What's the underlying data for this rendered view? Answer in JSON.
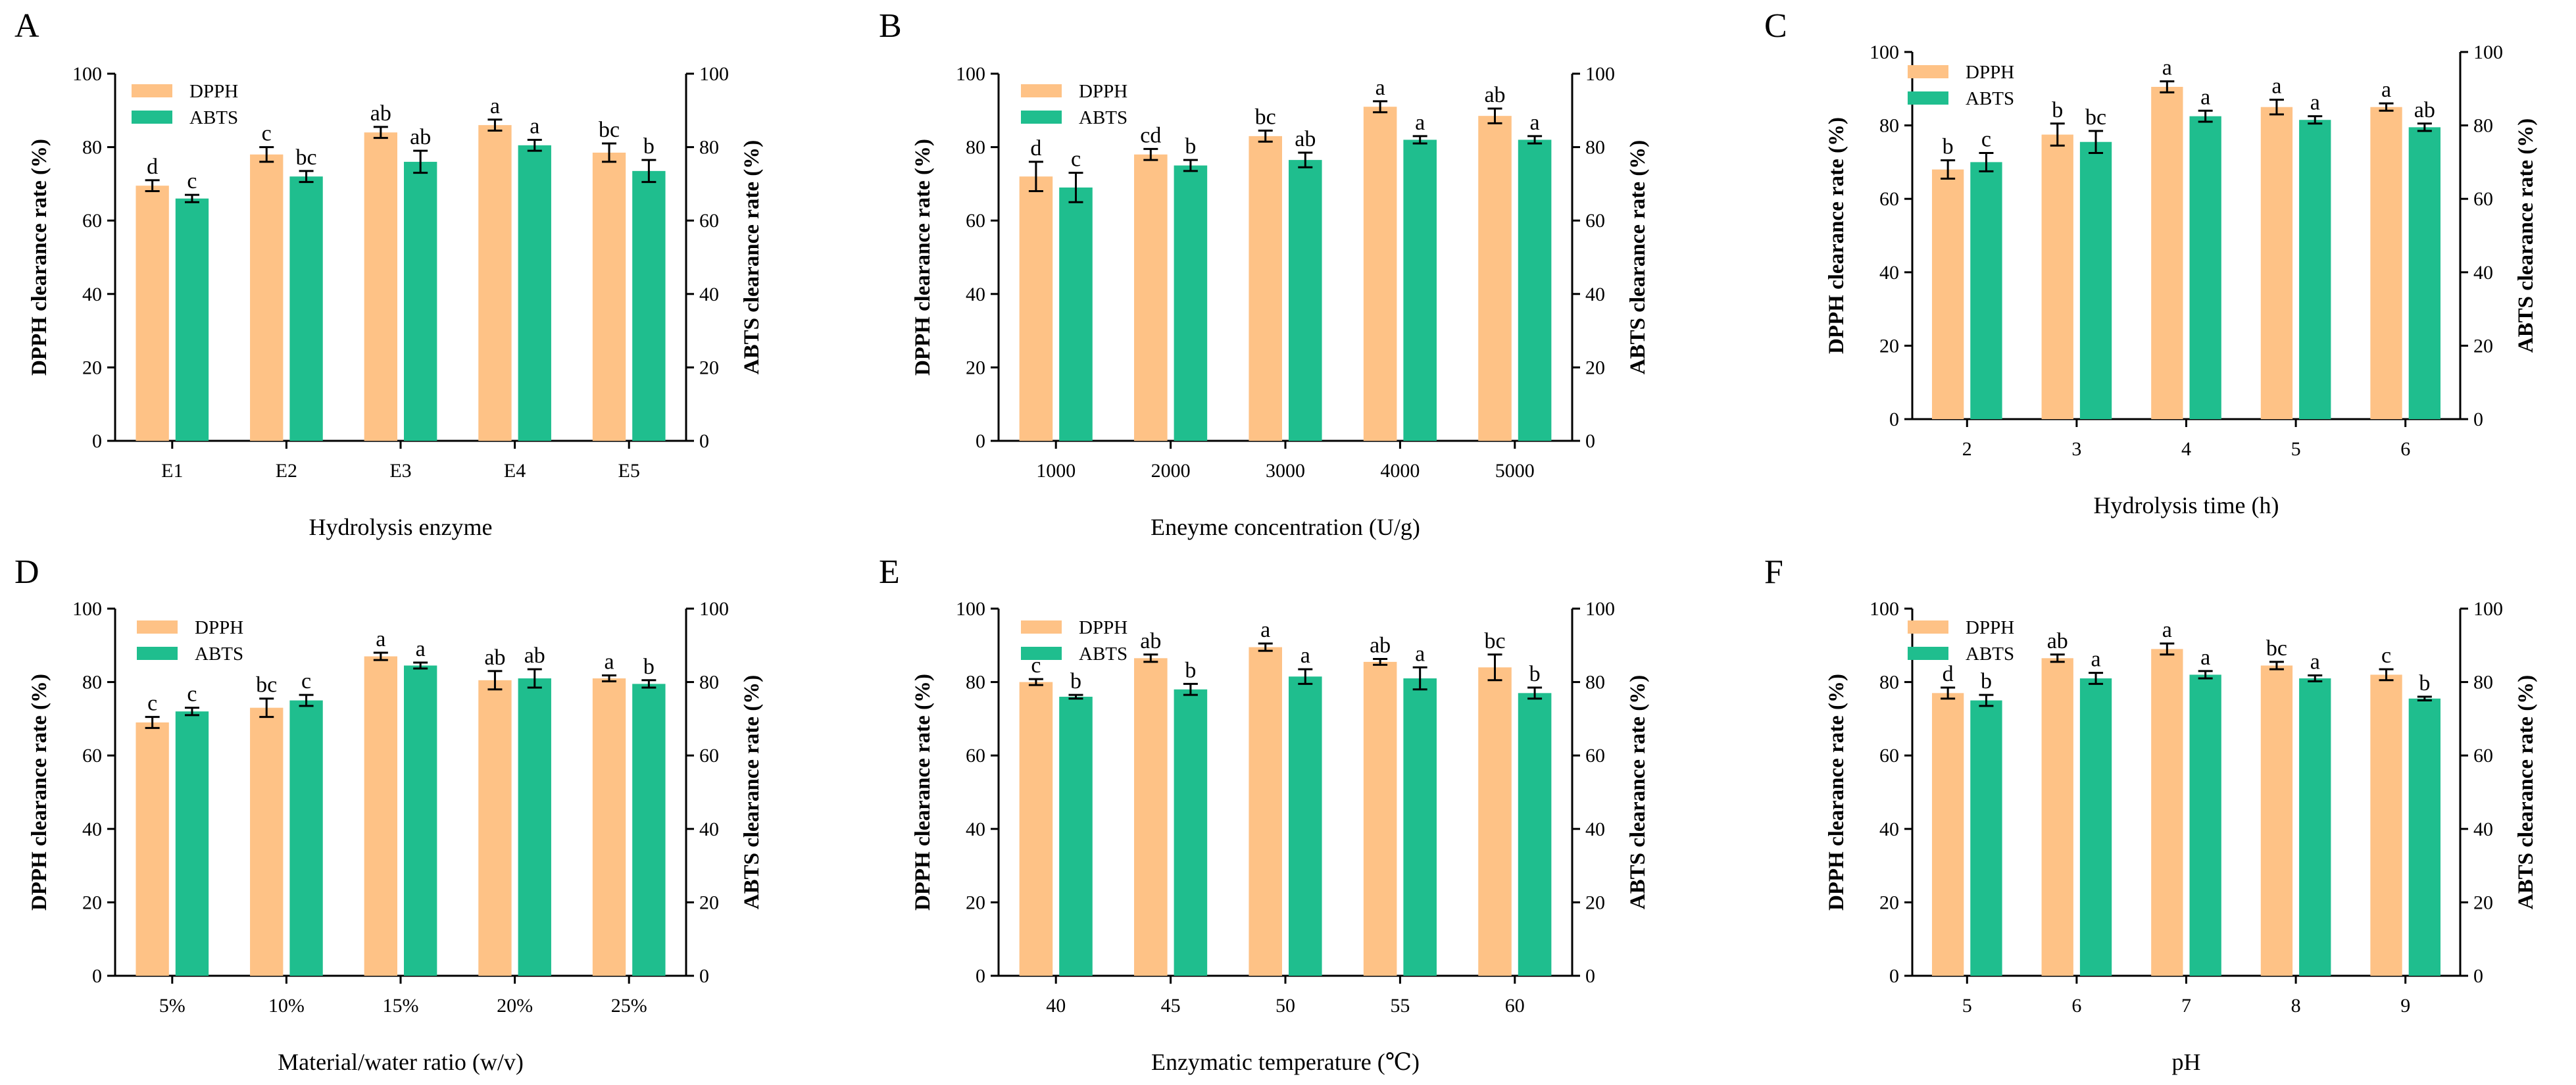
{
  "colors": {
    "dpph": "#FEC286",
    "abts": "#1FBE8E",
    "axis": "#000000"
  },
  "legend": [
    "DPPH",
    "ABTS"
  ],
  "left_axis_label": "DPPH clearance rate (%)",
  "right_axis_label": "ABTS clearance rate (%)",
  "chart_data": [
    {
      "panel": "A",
      "type": "bar",
      "xlabel": "Hydrolysis enzyme",
      "ylabel": "DPPH clearance rate (%)",
      "y2label": "ABTS clearance rate (%)",
      "ylim": [
        0,
        100
      ],
      "yticks": [
        "0",
        "20",
        "40",
        "60",
        "80",
        "100"
      ],
      "categories": [
        "E1",
        "E2",
        "E3",
        "E4",
        "E5"
      ],
      "series": [
        {
          "name": "DPPH",
          "values": [
            69.5,
            78,
            84,
            86,
            78.5
          ],
          "errors": [
            1.5,
            2,
            1.5,
            1.5,
            2.5
          ],
          "labels": [
            "d",
            "c",
            "ab",
            "a",
            "bc"
          ]
        },
        {
          "name": "ABTS",
          "values": [
            66,
            72,
            76,
            80.5,
            73.5
          ],
          "errors": [
            1,
            1.5,
            3,
            1.5,
            3
          ],
          "labels": [
            "c",
            "bc",
            "ab",
            "a",
            "b"
          ]
        }
      ]
    },
    {
      "panel": "B",
      "type": "bar",
      "xlabel": "Eneyme concentration (U/g)",
      "ylabel": "DPPH clearance rate (%)",
      "y2label": "ABTS clearance rate (%)",
      "ylim": [
        0,
        100
      ],
      "yticks": [
        "0",
        "20",
        "40",
        "60",
        "80",
        "100"
      ],
      "categories": [
        "1000",
        "2000",
        "3000",
        "4000",
        "5000"
      ],
      "series": [
        {
          "name": "DPPH",
          "values": [
            72,
            78,
            83,
            91,
            88.5
          ],
          "errors": [
            4,
            1.5,
            1.5,
            1.5,
            2
          ],
          "labels": [
            "d",
            "cd",
            "bc",
            "a",
            "ab"
          ]
        },
        {
          "name": "ABTS",
          "values": [
            69,
            75,
            76.5,
            82,
            82
          ],
          "errors": [
            4,
            1.5,
            2,
            1,
            1
          ],
          "labels": [
            "c",
            "b",
            "ab",
            "a",
            "a"
          ]
        }
      ]
    },
    {
      "panel": "C",
      "type": "bar",
      "xlabel": "Hydrolysis time (h)",
      "ylabel": "DPPH clearance rate (%)",
      "y2label": "ABTS clearance rate (%)",
      "ylim": [
        0,
        100
      ],
      "yticks": [
        "0",
        "20",
        "40",
        "60",
        "80",
        "100"
      ],
      "categories": [
        "2",
        "3",
        "4",
        "5",
        "6"
      ],
      "series": [
        {
          "name": "DPPH",
          "values": [
            68,
            77.5,
            90.5,
            85,
            85
          ],
          "errors": [
            2.5,
            3,
            1.5,
            2,
            1
          ],
          "labels": [
            "b",
            "b",
            "a",
            "a",
            "a"
          ]
        },
        {
          "name": "ABTS",
          "values": [
            70,
            75.5,
            82.5,
            81.5,
            79.5
          ],
          "errors": [
            2.5,
            3,
            1.5,
            1,
            1
          ],
          "labels": [
            "c",
            "bc",
            "a",
            "a",
            "ab"
          ]
        }
      ]
    },
    {
      "panel": "D",
      "type": "bar",
      "xlabel": "Material/water ratio (w/v)",
      "ylabel": "DPPH clearance rate (%)",
      "y2label": "ABTS clearance rate (%)",
      "ylim": [
        0,
        100
      ],
      "yticks": [
        "0",
        "20",
        "40",
        "60",
        "80",
        "100"
      ],
      "categories": [
        "5%",
        "10%",
        "15%",
        "20%",
        "25%"
      ],
      "series": [
        {
          "name": "DPPH",
          "values": [
            69,
            73,
            87,
            80.5,
            81
          ],
          "errors": [
            1.5,
            2.5,
            1,
            2.5,
            0.8
          ],
          "labels": [
            "c",
            "bc",
            "a",
            "ab",
            "a"
          ]
        },
        {
          "name": "ABTS",
          "values": [
            72,
            75,
            84.5,
            81,
            79.5
          ],
          "errors": [
            1,
            1.5,
            0.8,
            2.5,
            1
          ],
          "labels": [
            "c",
            "c",
            "a",
            "ab",
            "b"
          ]
        }
      ]
    },
    {
      "panel": "E",
      "type": "bar",
      "xlabel": "Enzymatic temperature (℃)",
      "ylabel": "DPPH clearance rate (%)",
      "y2label": "ABTS clearance rate (%)",
      "ylim": [
        0,
        100
      ],
      "yticks": [
        "0",
        "20",
        "40",
        "60",
        "80",
        "100"
      ],
      "categories": [
        "40",
        "45",
        "50",
        "55",
        "60"
      ],
      "series": [
        {
          "name": "DPPH",
          "values": [
            80,
            86.5,
            89.5,
            85.5,
            84
          ],
          "errors": [
            0.8,
            1,
            1,
            0.8,
            3.5
          ],
          "labels": [
            "c",
            "ab",
            "a",
            "ab",
            "bc"
          ]
        },
        {
          "name": "ABTS",
          "values": [
            76,
            78,
            81.5,
            81,
            77
          ],
          "errors": [
            0.5,
            1.5,
            2,
            3,
            1.5
          ],
          "labels": [
            "b",
            "b",
            "a",
            "a",
            "b"
          ]
        }
      ]
    },
    {
      "panel": "F",
      "type": "bar",
      "xlabel": "pH",
      "ylabel": "DPPH clearance rate (%)",
      "y2label": "ABTS clearance rate (%)",
      "ylim": [
        0,
        100
      ],
      "yticks": [
        "0",
        "20",
        "40",
        "60",
        "80",
        "100"
      ],
      "categories": [
        "5",
        "6",
        "7",
        "8",
        "9"
      ],
      "series": [
        {
          "name": "DPPH",
          "values": [
            77,
            86.5,
            89,
            84.5,
            82
          ],
          "errors": [
            1.5,
            1,
            1.5,
            1,
            1.5
          ],
          "labels": [
            "d",
            "ab",
            "a",
            "bc",
            "c"
          ]
        },
        {
          "name": "ABTS",
          "values": [
            75,
            81,
            82,
            81,
            75.5
          ],
          "errors": [
            1.5,
            1.5,
            1,
            0.8,
            0.5
          ],
          "labels": [
            "b",
            "a",
            "a",
            "a",
            "b"
          ]
        }
      ]
    }
  ]
}
